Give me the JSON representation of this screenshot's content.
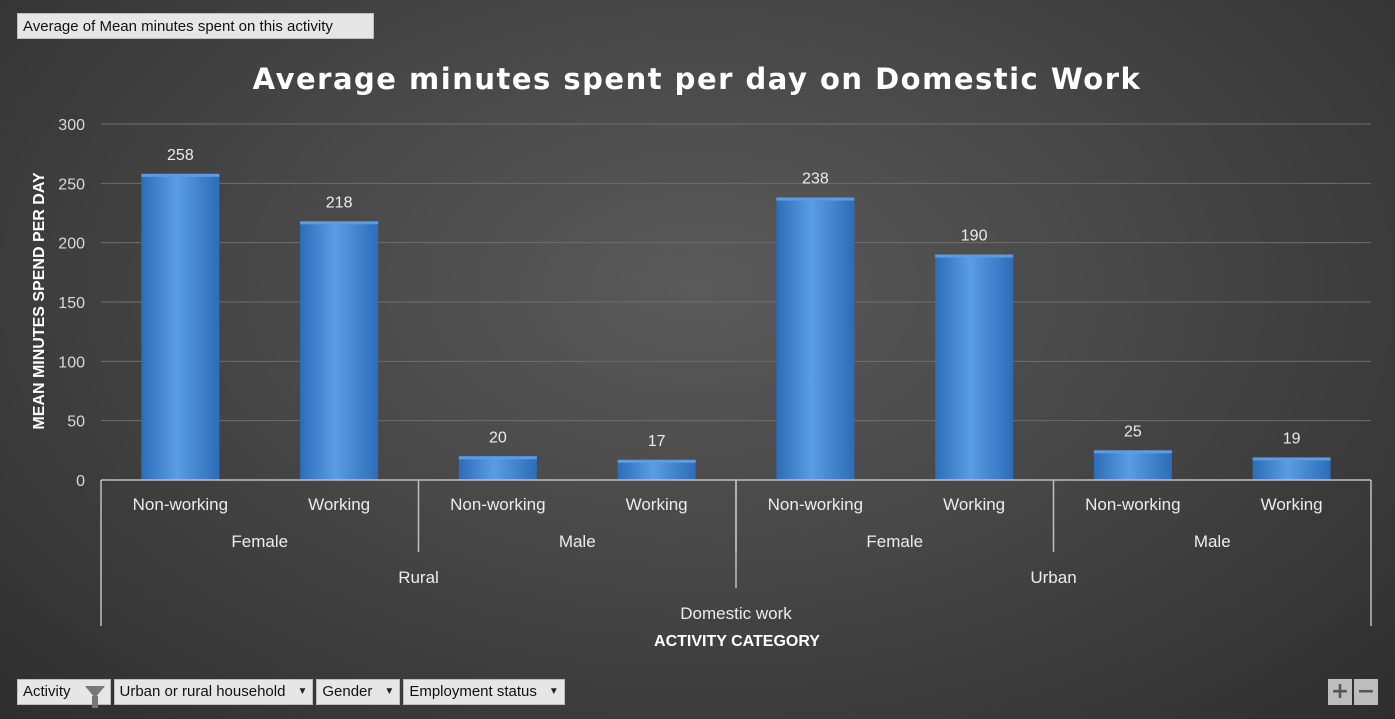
{
  "value_field": "Average of Mean minutes spent on this activity",
  "filters": [
    {
      "label": "Activity",
      "icon": "filter-funnel-icon"
    },
    {
      "label": "Urban or rural household",
      "icon": "dropdown-arrow-icon"
    },
    {
      "label": "Gender",
      "icon": "dropdown-arrow-icon"
    },
    {
      "label": "Employment status",
      "icon": "dropdown-arrow-icon"
    }
  ],
  "zoom": {
    "expand": "+",
    "collapse": "−"
  },
  "chart_data": {
    "type": "bar",
    "title": "Average minutes spent per day on Domestic Work",
    "ylabel": "MEAN MINUTES SPEND PER DAY",
    "xlabel": "ACTIVITY CATEGORY",
    "ylim": [
      0,
      300
    ],
    "yticks": [
      0,
      50,
      100,
      150,
      200,
      250,
      300
    ],
    "categories": [
      {
        "activity": "Domestic work",
        "area": "Rural",
        "gender": "Female",
        "status": "Non-working"
      },
      {
        "activity": "Domestic work",
        "area": "Rural",
        "gender": "Female",
        "status": "Working"
      },
      {
        "activity": "Domestic work",
        "area": "Rural",
        "gender": "Male",
        "status": "Non-working"
      },
      {
        "activity": "Domestic work",
        "area": "Rural",
        "gender": "Male",
        "status": "Working"
      },
      {
        "activity": "Domestic work",
        "area": "Urban",
        "gender": "Female",
        "status": "Non-working"
      },
      {
        "activity": "Domestic work",
        "area": "Urban",
        "gender": "Female",
        "status": "Working"
      },
      {
        "activity": "Domestic work",
        "area": "Urban",
        "gender": "Male",
        "status": "Non-working"
      },
      {
        "activity": "Domestic work",
        "area": "Urban",
        "gender": "Male",
        "status": "Working"
      }
    ],
    "values": [
      258,
      218,
      20,
      17,
      238,
      190,
      25,
      19
    ],
    "gridlines": true,
    "legend": "none",
    "colors": {
      "bar": "#3f85d6",
      "bar_light": "#5b9ce6",
      "bar_dark": "#2d6cb8",
      "grid": "#6e6e6e",
      "axis": "#bfbfbf"
    }
  }
}
